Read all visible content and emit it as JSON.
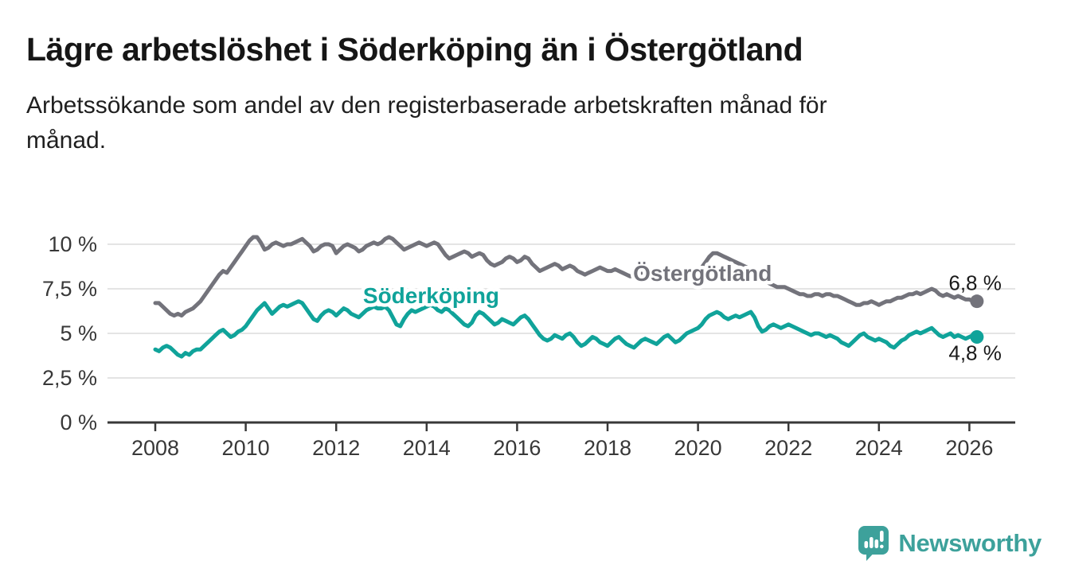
{
  "header": {
    "title": "Lägre arbetslöshet i Söderköping än i Östergötland",
    "subtitle_line1": "Arbetssökande som andel av den registerbaserade arbetskraften månad för",
    "subtitle_line2": "månad."
  },
  "branding": {
    "wordmark": "Newsworthy",
    "icon": "newsworthy-speech-bubble-bar-chart-icon",
    "color": "#3da19b"
  },
  "chart_data": {
    "type": "line",
    "x_unit": "monthly",
    "x_start_year": 2008,
    "x_end_year": 2026.17,
    "ylim": [
      0,
      11
    ],
    "grid": "horizontal",
    "background": "#ffffff",
    "gridline_color": "#dcdcdc",
    "axis_color": "#383838",
    "yticks": [
      {
        "value": 0,
        "label": "0 %"
      },
      {
        "value": 2.5,
        "label": "2,5 %"
      },
      {
        "value": 5,
        "label": "5 %"
      },
      {
        "value": 7.5,
        "label": "7,5 %"
      },
      {
        "value": 10,
        "label": "10 %"
      }
    ],
    "xticks": [
      2008,
      2010,
      2012,
      2014,
      2016,
      2018,
      2020,
      2022,
      2024,
      2026
    ],
    "series": [
      {
        "name": "Östergötland",
        "color": "#73737b",
        "label_anchor": {
          "year": 2020.1,
          "value": 8.4
        },
        "end_label": "6,8 %",
        "end_label_position": "above",
        "last_value": 6.8,
        "values": [
          6.7,
          6.7,
          6.5,
          6.3,
          6.1,
          6.0,
          6.1,
          6.0,
          6.2,
          6.3,
          6.4,
          6.6,
          6.8,
          7.1,
          7.4,
          7.7,
          8.0,
          8.3,
          8.5,
          8.4,
          8.7,
          9.0,
          9.3,
          9.6,
          9.9,
          10.2,
          10.4,
          10.4,
          10.1,
          9.7,
          9.8,
          10.0,
          10.1,
          10.0,
          9.9,
          10.0,
          10.0,
          10.1,
          10.2,
          10.3,
          10.1,
          9.9,
          9.6,
          9.7,
          9.9,
          10.0,
          10.0,
          9.9,
          9.5,
          9.7,
          9.9,
          10.0,
          9.9,
          9.8,
          9.6,
          9.7,
          9.9,
          10.0,
          10.1,
          10.0,
          10.1,
          10.3,
          10.4,
          10.3,
          10.1,
          9.9,
          9.7,
          9.8,
          9.9,
          10.0,
          10.1,
          10.0,
          9.9,
          10.0,
          10.1,
          10.0,
          9.7,
          9.4,
          9.2,
          9.3,
          9.4,
          9.5,
          9.6,
          9.5,
          9.3,
          9.4,
          9.5,
          9.4,
          9.1,
          8.9,
          8.8,
          8.9,
          9.0,
          9.2,
          9.3,
          9.2,
          9.0,
          9.1,
          9.3,
          9.2,
          8.9,
          8.7,
          8.5,
          8.6,
          8.7,
          8.8,
          8.9,
          8.8,
          8.6,
          8.7,
          8.8,
          8.7,
          8.5,
          8.4,
          8.3,
          8.4,
          8.5,
          8.6,
          8.7,
          8.6,
          8.5,
          8.5,
          8.6,
          8.5,
          8.4,
          8.3,
          8.2,
          8.2,
          8.3,
          8.4,
          8.4,
          8.3,
          8.2,
          8.2,
          8.3,
          8.2,
          8.1,
          8.0,
          8.0,
          8.1,
          8.2,
          8.2,
          8.3,
          8.4,
          8.5,
          8.7,
          9.0,
          9.3,
          9.5,
          9.5,
          9.4,
          9.3,
          9.2,
          9.1,
          9.0,
          8.9,
          8.8,
          8.7,
          8.6,
          8.5,
          8.3,
          8.1,
          7.9,
          7.8,
          7.7,
          7.6,
          7.6,
          7.6,
          7.5,
          7.4,
          7.3,
          7.2,
          7.2,
          7.1,
          7.1,
          7.2,
          7.2,
          7.1,
          7.2,
          7.2,
          7.1,
          7.1,
          7.0,
          6.9,
          6.8,
          6.7,
          6.6,
          6.6,
          6.7,
          6.7,
          6.8,
          6.7,
          6.6,
          6.7,
          6.8,
          6.8,
          6.9,
          7.0,
          7.0,
          7.1,
          7.2,
          7.2,
          7.3,
          7.2,
          7.3,
          7.4,
          7.5,
          7.4,
          7.2,
          7.1,
          7.2,
          7.1,
          7.0,
          7.1,
          7.0,
          6.9,
          6.9,
          6.8,
          6.8
        ]
      },
      {
        "name": "Söderköping",
        "color": "#10a39a",
        "label_anchor": {
          "year": 2014.1,
          "value": 7.15
        },
        "end_label": "4,8 %",
        "end_label_position": "below",
        "last_value": 4.8,
        "values": [
          4.1,
          4.0,
          4.2,
          4.3,
          4.2,
          4.0,
          3.8,
          3.7,
          3.9,
          3.8,
          4.0,
          4.1,
          4.1,
          4.3,
          4.5,
          4.7,
          4.9,
          5.1,
          5.2,
          5.0,
          4.8,
          4.9,
          5.1,
          5.2,
          5.4,
          5.7,
          6.0,
          6.3,
          6.5,
          6.7,
          6.4,
          6.1,
          6.3,
          6.5,
          6.6,
          6.5,
          6.6,
          6.7,
          6.8,
          6.7,
          6.4,
          6.1,
          5.8,
          5.7,
          6.0,
          6.2,
          6.3,
          6.2,
          6.0,
          6.2,
          6.4,
          6.3,
          6.1,
          6.0,
          5.9,
          6.1,
          6.3,
          6.4,
          6.5,
          6.4,
          6.4,
          6.5,
          6.3,
          5.9,
          5.5,
          5.4,
          5.8,
          6.1,
          6.3,
          6.2,
          6.3,
          6.4,
          6.5,
          6.6,
          6.5,
          6.3,
          6.2,
          6.4,
          6.3,
          6.1,
          5.9,
          5.7,
          5.5,
          5.4,
          5.6,
          6.0,
          6.2,
          6.1,
          5.9,
          5.7,
          5.5,
          5.6,
          5.8,
          5.7,
          5.6,
          5.5,
          5.7,
          5.9,
          6.0,
          5.8,
          5.5,
          5.2,
          4.9,
          4.7,
          4.6,
          4.7,
          4.9,
          4.8,
          4.7,
          4.9,
          5.0,
          4.8,
          4.5,
          4.3,
          4.4,
          4.6,
          4.8,
          4.7,
          4.5,
          4.4,
          4.3,
          4.5,
          4.7,
          4.8,
          4.6,
          4.4,
          4.3,
          4.2,
          4.4,
          4.6,
          4.7,
          4.6,
          4.5,
          4.4,
          4.6,
          4.8,
          4.9,
          4.7,
          4.5,
          4.6,
          4.8,
          5.0,
          5.1,
          5.2,
          5.3,
          5.5,
          5.8,
          6.0,
          6.1,
          6.2,
          6.1,
          5.9,
          5.8,
          5.9,
          6.0,
          5.9,
          6.0,
          6.1,
          6.2,
          5.9,
          5.4,
          5.1,
          5.2,
          5.4,
          5.5,
          5.4,
          5.3,
          5.4,
          5.5,
          5.4,
          5.3,
          5.2,
          5.1,
          5.0,
          4.9,
          5.0,
          5.0,
          4.9,
          4.8,
          4.9,
          4.8,
          4.7,
          4.5,
          4.4,
          4.3,
          4.5,
          4.7,
          4.9,
          5.0,
          4.8,
          4.7,
          4.6,
          4.7,
          4.6,
          4.5,
          4.3,
          4.2,
          4.4,
          4.6,
          4.7,
          4.9,
          5.0,
          5.1,
          5.0,
          5.1,
          5.2,
          5.3,
          5.1,
          4.9,
          4.8,
          4.9,
          5.0,
          4.8,
          4.9,
          4.8,
          4.7,
          4.8,
          4.9,
          4.8
        ]
      }
    ]
  }
}
